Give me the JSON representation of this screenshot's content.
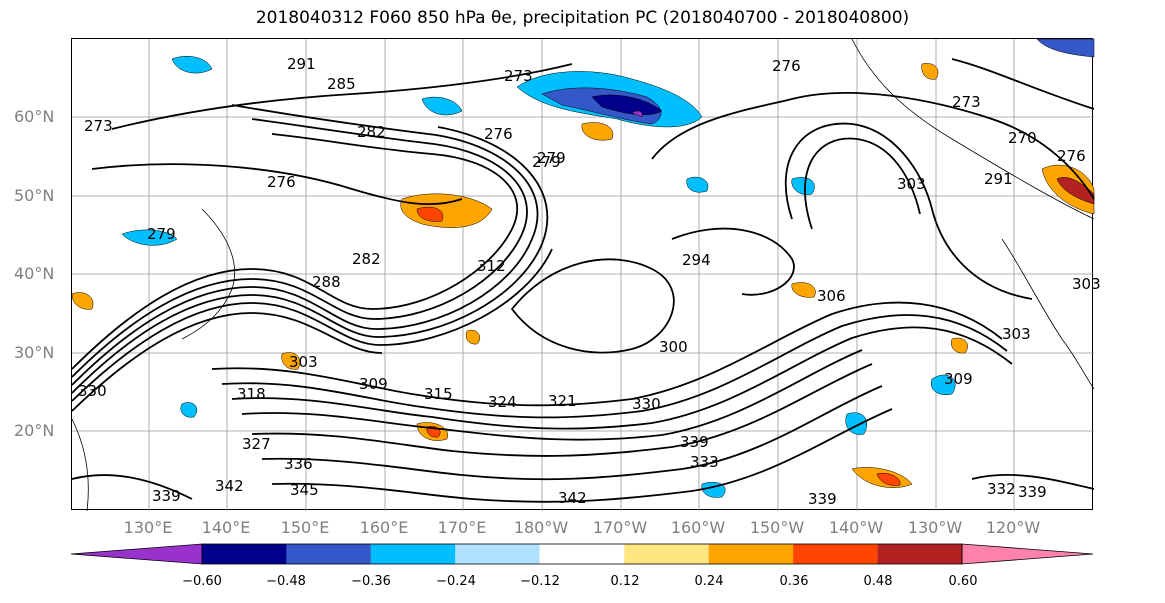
{
  "title": "2018040312 F060 850 hPa θe, precipitation PC (2018040700 - 2018040800)",
  "latitude_labels": [
    "60°N",
    "50°N",
    "40°N",
    "30°N",
    "20°N"
  ],
  "longitude_labels": [
    "130°E",
    "140°E",
    "150°E",
    "160°E",
    "170°E",
    "180°W",
    "170°W",
    "160°W",
    "150°W",
    "140°W",
    "130°W",
    "120°W"
  ],
  "contour_labels": [
    "291",
    "285",
    "273",
    "282",
    "276",
    "279",
    "273",
    "276",
    "273",
    "276",
    "279",
    "279",
    "288",
    "282",
    "294",
    "306",
    "303",
    "291",
    "300",
    "303",
    "318",
    "309",
    "315",
    "324",
    "321",
    "330",
    "327",
    "336",
    "339",
    "333",
    "345",
    "342",
    "339",
    "342",
    "339",
    "309",
    "303",
    "330",
    "332",
    "339",
    "276",
    "303",
    "312",
    "270"
  ],
  "colorbar": {
    "tick_labels": [
      "−0.60",
      "−0.48",
      "−0.36",
      "−0.24",
      "−0.12",
      "0.12",
      "0.24",
      "0.36",
      "0.48",
      "0.60"
    ],
    "colors": [
      "#9932cc",
      "#00008b",
      "#3558c8",
      "#00bfff",
      "#b0e2ff",
      "#ffffff",
      "#ffe680",
      "#ffa500",
      "#ff4500",
      "#b22222",
      "#ff82ab"
    ]
  }
}
